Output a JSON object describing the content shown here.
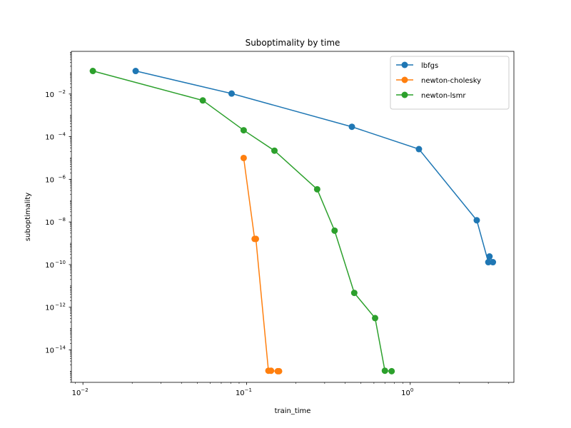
{
  "chart_data": {
    "type": "line",
    "title": "Suboptimality by time",
    "xlabel": "train_time",
    "ylabel": "suboptimality",
    "xscale": "log",
    "yscale": "log",
    "xlim": [
      0.0085,
      4.3
    ],
    "ylim": [
      3e-16,
      1.0
    ],
    "grid": false,
    "legend_position": "top-right",
    "x_ticks": [
      {
        "value": 0.01,
        "base": "10",
        "exp": "−2"
      },
      {
        "value": 0.1,
        "base": "10",
        "exp": "−1"
      },
      {
        "value": 1,
        "base": "10",
        "exp": "0"
      }
    ],
    "y_ticks": [
      {
        "value": 0.01,
        "base": "10",
        "exp": "−2"
      },
      {
        "value": 0.0001,
        "base": "10",
        "exp": "−4"
      },
      {
        "value": 1e-06,
        "base": "10",
        "exp": "−6"
      },
      {
        "value": 1e-08,
        "base": "10",
        "exp": "−8"
      },
      {
        "value": 1e-10,
        "base": "10",
        "exp": "−10"
      },
      {
        "value": 1e-12,
        "base": "10",
        "exp": "−12"
      },
      {
        "value": 1e-14,
        "base": "10",
        "exp": "−14"
      }
    ],
    "series": [
      {
        "name": "lbfgs",
        "color": "#1f77b4",
        "x": [
          0.021,
          0.081,
          0.44,
          1.13,
          2.55,
          3.0,
          3.05,
          3.2
        ],
        "y": [
          0.12,
          0.0105,
          0.00029,
          2.6e-05,
          1.2e-08,
          1.3e-10,
          2.4e-10,
          1.3e-10
        ]
      },
      {
        "name": "newton-cholesky",
        "color": "#ff7f0e",
        "x": [
          0.096,
          0.112,
          0.114,
          0.136,
          0.141,
          0.155,
          0.158
        ],
        "y": [
          1e-05,
          1.6e-09,
          1.6e-09,
          1.05e-15,
          1.05e-15,
          1e-15,
          1e-15
        ]
      },
      {
        "name": "newton-lsmr",
        "color": "#2ca02c",
        "x": [
          0.0115,
          0.054,
          0.096,
          0.148,
          0.27,
          0.345,
          0.455,
          0.61,
          0.7,
          0.77
        ],
        "y": [
          0.12,
          0.005,
          0.0002,
          2.2e-05,
          3.4e-07,
          3.9e-09,
          4.7e-12,
          3.1e-13,
          1.05e-15,
          1e-15
        ]
      }
    ]
  }
}
